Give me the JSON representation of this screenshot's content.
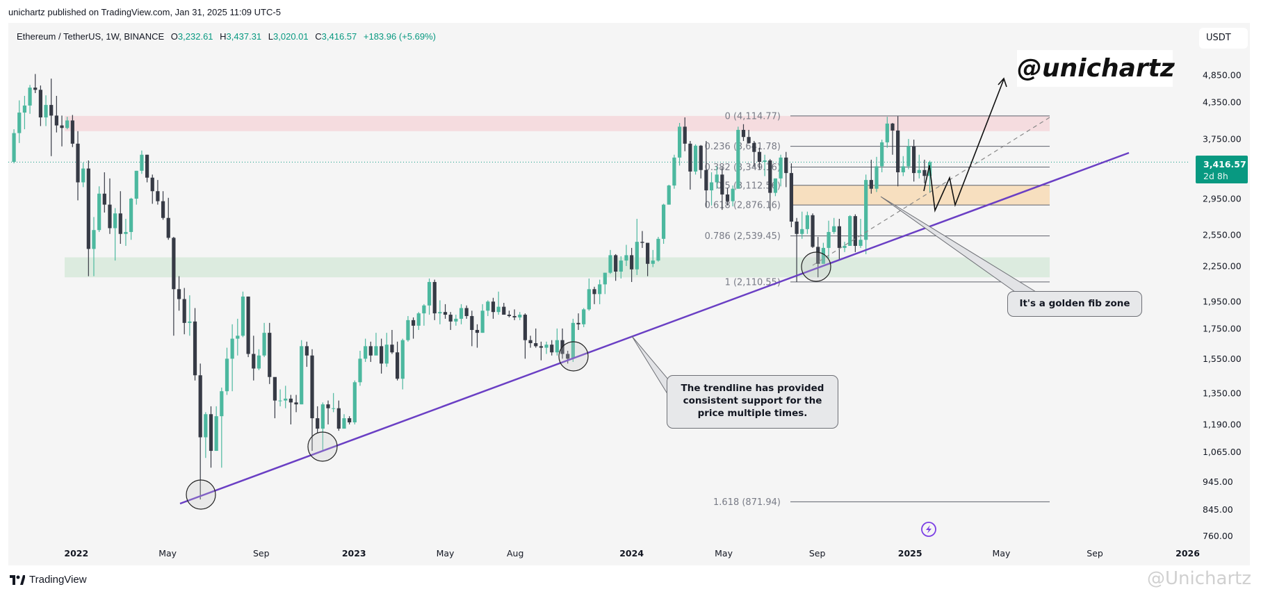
{
  "header": {
    "published": "unichartz published on TradingView.com, Jan 31, 2025 11:09 UTC-5"
  },
  "legend": {
    "symbol": "Ethereum / TetherUS, 1W, BINANCE",
    "o_label": "O",
    "o": "3,232.61",
    "h_label": "H",
    "h": "3,437.31",
    "l_label": "L",
    "l": "3,020.01",
    "c_label": "C",
    "c": "3,416.57",
    "change": "+183.96 (+5.69%)"
  },
  "currency_button": "USDT",
  "brand_tag": "@unichartz",
  "price_label": {
    "price": "3,416.57",
    "countdown": "2d 8h"
  },
  "callouts": {
    "fib_zone": "It's a golden fib zone",
    "trendline_1": "The trendline has provided",
    "trendline_2": "consistent support for the",
    "trendline_3": "price multiple times."
  },
  "footer": {
    "logo": "TradingView",
    "watermark": "@Unichartz"
  },
  "icons": {
    "lightning": "lightning-icon",
    "tv_logo": "tradingview-logo-icon"
  },
  "colors": {
    "up": "#4cb89f",
    "down": "#363a45",
    "trendline": "#6a3fc4",
    "resistance_zone": "#f5dcdf",
    "support_zone": "#dcebdf",
    "golden_zone": "#f7dfbf",
    "last_price": "#089981"
  },
  "chart_data": {
    "type": "candlestick",
    "interval": "1W",
    "y_scale": "log",
    "first_week": "2021-10-11",
    "candles": [
      [
        3420,
        3900,
        3400,
        3840
      ],
      [
        3840,
        4380,
        3690,
        4170
      ],
      [
        4170,
        4460,
        3900,
        4290
      ],
      [
        4290,
        4660,
        4150,
        4610
      ],
      [
        4610,
        4870,
        4510,
        4570
      ],
      [
        4570,
        4650,
        3950,
        4090
      ],
      [
        4090,
        4470,
        3950,
        4300
      ],
      [
        4300,
        4780,
        3500,
        4120
      ],
      [
        4120,
        4460,
        3850,
        3960
      ],
      [
        3960,
        4120,
        3640,
        3920
      ],
      [
        3920,
        4100,
        3900,
        4040
      ],
      [
        4040,
        4130,
        3630,
        3680
      ],
      [
        3680,
        3870,
        2930,
        3150
      ],
      [
        3150,
        3410,
        3090,
        3330
      ],
      [
        3330,
        3440,
        2160,
        2410
      ],
      [
        2410,
        2740,
        2160,
        2600
      ],
      [
        2600,
        3100,
        2580,
        3010
      ],
      [
        3010,
        3280,
        2790,
        2880
      ],
      [
        2880,
        3200,
        2560,
        2620
      ],
      [
        2620,
        2840,
        2300,
        2780
      ],
      [
        2780,
        3040,
        2460,
        2560
      ],
      [
        2560,
        2720,
        2440,
        2580
      ],
      [
        2580,
        2960,
        2500,
        2950
      ],
      [
        2950,
        3300,
        2880,
        3300
      ],
      [
        3300,
        3580,
        3260,
        3520
      ],
      [
        3520,
        3520,
        3150,
        3210
      ],
      [
        3210,
        3250,
        2890,
        3040
      ],
      [
        3040,
        3180,
        2880,
        2920
      ],
      [
        2920,
        3040,
        2710,
        2730
      ],
      [
        2730,
        2960,
        2500,
        2520
      ],
      [
        2520,
        2530,
        1700,
        2050
      ],
      [
        2050,
        2160,
        1880,
        1970
      ],
      [
        1970,
        2060,
        1710,
        1790
      ],
      [
        1790,
        2000,
        1700,
        1800
      ],
      [
        1800,
        1900,
        1420,
        1450
      ],
      [
        1450,
        1520,
        880,
        1130
      ],
      [
        1130,
        1250,
        1040,
        1240
      ],
      [
        1240,
        1280,
        1000,
        1070
      ],
      [
        1070,
        1280,
        1070,
        1230
      ],
      [
        1230,
        1380,
        1000,
        1360
      ],
      [
        1360,
        1620,
        1340,
        1550
      ],
      [
        1550,
        1780,
        1360,
        1680
      ],
      [
        1680,
        1820,
        1570,
        1700
      ],
      [
        1700,
        2030,
        1690,
        1990
      ],
      [
        1990,
        1990,
        1560,
        1580
      ],
      [
        1580,
        1700,
        1420,
        1490
      ],
      [
        1490,
        1610,
        1480,
        1570
      ],
      [
        1570,
        1790,
        1560,
        1720
      ],
      [
        1720,
        1790,
        1400,
        1440
      ],
      [
        1440,
        1430,
        1220,
        1310
      ],
      [
        1310,
        1370,
        1280,
        1310
      ],
      [
        1310,
        1390,
        1270,
        1320
      ],
      [
        1320,
        1340,
        1190,
        1300
      ],
      [
        1300,
        1340,
        1250,
        1290
      ],
      [
        1290,
        1670,
        1290,
        1630
      ],
      [
        1630,
        1660,
        1500,
        1570
      ],
      [
        1570,
        1610,
        1070,
        1220
      ],
      [
        1220,
        1280,
        1150,
        1170
      ],
      [
        1170,
        1300,
        1070,
        1290
      ],
      [
        1290,
        1310,
        1190,
        1270
      ],
      [
        1270,
        1350,
        1250,
        1270
      ],
      [
        1270,
        1310,
        1160,
        1170
      ],
      [
        1170,
        1240,
        1170,
        1220
      ],
      [
        1220,
        1230,
        1190,
        1200
      ],
      [
        1200,
        1420,
        1190,
        1410
      ],
      [
        1410,
        1600,
        1390,
        1550
      ],
      [
        1550,
        1680,
        1530,
        1630
      ],
      [
        1630,
        1660,
        1530,
        1570
      ],
      [
        1570,
        1720,
        1580,
        1630
      ],
      [
        1630,
        1680,
        1460,
        1520
      ],
      [
        1520,
        1720,
        1500,
        1640
      ],
      [
        1640,
        1740,
        1580,
        1590
      ],
      [
        1590,
        1660,
        1420,
        1430
      ],
      [
        1430,
        1680,
        1370,
        1670
      ],
      [
        1670,
        1840,
        1660,
        1810
      ],
      [
        1810,
        1830,
        1680,
        1770
      ],
      [
        1770,
        1870,
        1740,
        1860
      ],
      [
        1860,
        1930,
        1770,
        1920
      ],
      [
        1920,
        2140,
        1850,
        2110
      ],
      [
        2110,
        2130,
        1810,
        1860
      ],
      [
        1860,
        1960,
        1780,
        1870
      ],
      [
        1870,
        1930,
        1820,
        1850
      ],
      [
        1850,
        1870,
        1740,
        1800
      ],
      [
        1800,
        1850,
        1770,
        1820
      ],
      [
        1820,
        1930,
        1780,
        1900
      ],
      [
        1900,
        1920,
        1820,
        1840
      ],
      [
        1840,
        1880,
        1630,
        1740
      ],
      [
        1740,
        1780,
        1620,
        1720
      ],
      [
        1720,
        1930,
        1720,
        1880
      ],
      [
        1880,
        1960,
        1840,
        1950
      ],
      [
        1950,
        1980,
        1820,
        1870
      ],
      [
        1870,
        2030,
        1850,
        1910
      ],
      [
        1910,
        1940,
        1850,
        1850
      ],
      [
        1850,
        1880,
        1830,
        1840
      ],
      [
        1840,
        1890,
        1810,
        1830
      ],
      [
        1830,
        1870,
        1810,
        1850
      ],
      [
        1850,
        1860,
        1550,
        1670
      ],
      [
        1670,
        1700,
        1620,
        1650
      ],
      [
        1650,
        1750,
        1620,
        1630
      ],
      [
        1630,
        1660,
        1540,
        1620
      ],
      [
        1620,
        1660,
        1580,
        1640
      ],
      [
        1640,
        1670,
        1570,
        1590
      ],
      [
        1590,
        1750,
        1570,
        1670
      ],
      [
        1670,
        1750,
        1550,
        1580
      ],
      [
        1580,
        1600,
        1520,
        1550
      ],
      [
        1550,
        1820,
        1530,
        1790
      ],
      [
        1790,
        1860,
        1740,
        1780
      ],
      [
        1780,
        1900,
        1760,
        1890
      ],
      [
        1890,
        2140,
        1880,
        2050
      ],
      [
        2050,
        2070,
        1930,
        2010
      ],
      [
        2010,
        2130,
        1930,
        2090
      ],
      [
        2090,
        2190,
        2010,
        2190
      ],
      [
        2190,
        2400,
        2180,
        2350
      ],
      [
        2350,
        2360,
        2120,
        2200
      ],
      [
        2200,
        2340,
        2140,
        2300
      ],
      [
        2300,
        2450,
        2250,
        2350
      ],
      [
        2350,
        2420,
        2110,
        2220
      ],
      [
        2220,
        2720,
        2170,
        2480
      ],
      [
        2480,
        2590,
        2420,
        2470
      ],
      [
        2470,
        2470,
        2160,
        2270
      ],
      [
        2270,
        2400,
        2240,
        2300
      ],
      [
        2300,
        2530,
        2290,
        2510
      ],
      [
        2510,
        2890,
        2460,
        2880
      ],
      [
        2880,
        3120,
        2880,
        3110
      ],
      [
        3110,
        3520,
        3070,
        3480
      ],
      [
        3480,
        4000,
        3370,
        3940
      ],
      [
        3940,
        4090,
        3570,
        3680
      ],
      [
        3680,
        3720,
        3060,
        3290
      ],
      [
        3290,
        3670,
        3250,
        3650
      ],
      [
        3650,
        3660,
        3200,
        3310
      ],
      [
        3310,
        3720,
        2850,
        3050
      ],
      [
        3050,
        3280,
        2870,
        3150
      ],
      [
        3150,
        3360,
        3070,
        3250
      ],
      [
        3250,
        3350,
        2820,
        3000
      ],
      [
        3000,
        3080,
        2870,
        2920
      ],
      [
        2920,
        3110,
        2860,
        3070
      ],
      [
        3070,
        3940,
        3070,
        3890
      ],
      [
        3890,
        3980,
        3720,
        3780
      ],
      [
        3780,
        3890,
        3680,
        3690
      ],
      [
        3690,
        3720,
        3350,
        3560
      ],
      [
        3560,
        3620,
        3320,
        3420
      ],
      [
        3420,
        3520,
        3230,
        3440
      ],
      [
        3440,
        3460,
        2810,
        3020
      ],
      [
        3020,
        3200,
        2980,
        3200
      ],
      [
        3200,
        3520,
        3100,
        3480
      ],
      [
        3480,
        3560,
        3090,
        3270
      ],
      [
        3270,
        3400,
        2630,
        2690
      ],
      [
        2690,
        2730,
        2110,
        2560
      ],
      [
        2560,
        2800,
        2510,
        2610
      ],
      [
        2610,
        2800,
        2560,
        2760
      ],
      [
        2760,
        2780,
        2420,
        2430
      ],
      [
        2430,
        2530,
        2150,
        2270
      ],
      [
        2270,
        2470,
        2270,
        2420
      ],
      [
        2420,
        2700,
        2320,
        2580
      ],
      [
        2580,
        2730,
        2560,
        2640
      ],
      [
        2640,
        2720,
        2310,
        2420
      ],
      [
        2420,
        2480,
        2380,
        2440
      ],
      [
        2440,
        2760,
        2440,
        2750
      ],
      [
        2750,
        2770,
        2380,
        2440
      ],
      [
        2440,
        2720,
        2420,
        2500
      ],
      [
        2500,
        3250,
        2360,
        3180
      ],
      [
        3180,
        3450,
        3010,
        3070
      ],
      [
        3070,
        3490,
        3030,
        3360
      ],
      [
        3360,
        3740,
        3280,
        3700
      ],
      [
        3700,
        4100,
        3620,
        3990
      ],
      [
        3990,
        4000,
        3520,
        3880
      ],
      [
        3880,
        4110,
        3100,
        3280
      ],
      [
        3280,
        3500,
        3230,
        3360
      ],
      [
        3360,
        3750,
        3320,
        3640
      ],
      [
        3640,
        3740,
        3160,
        3270
      ],
      [
        3270,
        3520,
        3200,
        3310
      ],
      [
        3310,
        3450,
        3140,
        3232.61
      ],
      [
        3232.61,
        3437.31,
        3020.01,
        3416.57
      ]
    ],
    "last_price": 3416.57,
    "y_ticks": [
      "4,850.00",
      "4,350.00",
      "3,750.00",
      "2,950.00",
      "2,550.00",
      "2,250.00",
      "1,950.00",
      "1,750.00",
      "1,550.00",
      "1,350.00",
      "1,190.00",
      "1,065.00",
      "945.00",
      "845.00",
      "760.00"
    ],
    "x_ticks": [
      {
        "label": "2022",
        "date": "2022-01-01",
        "year": true
      },
      {
        "label": "May",
        "date": "2022-05-01"
      },
      {
        "label": "Sep",
        "date": "2022-09-01"
      },
      {
        "label": "2023",
        "date": "2023-01-01",
        "year": true
      },
      {
        "label": "May",
        "date": "2023-05-01"
      },
      {
        "label": "Aug",
        "date": "2023-08-01"
      },
      {
        "label": "2024",
        "date": "2024-01-01",
        "year": true
      },
      {
        "label": "May",
        "date": "2024-05-01"
      },
      {
        "label": "Sep",
        "date": "2024-09-01"
      },
      {
        "label": "2025",
        "date": "2025-01-01",
        "year": true
      },
      {
        "label": "May",
        "date": "2025-05-01"
      },
      {
        "label": "Sep",
        "date": "2025-09-01"
      },
      {
        "label": "2026",
        "date": "2026-01-01",
        "year": true
      }
    ],
    "fib_levels": [
      {
        "ratio": "0",
        "price": 4114.77,
        "label": "0 (4,114.77)"
      },
      {
        "ratio": "0.236",
        "price": 3641.78,
        "label": "0.236 (3,641.78)"
      },
      {
        "ratio": "0.382",
        "price": 3349.16,
        "label": "0.382 (3,349.16)"
      },
      {
        "ratio": "0.5",
        "price": 3112.56,
        "label": "0.5 (3,112.56)"
      },
      {
        "ratio": "0.618",
        "price": 2876.16,
        "label": "0.618 (2,876.16)"
      },
      {
        "ratio": "0.786",
        "price": 2539.45,
        "label": "0.786 (2,539.45)"
      },
      {
        "ratio": "1",
        "price": 2110.55,
        "label": "1 (2,110.55)"
      },
      {
        "ratio": "1.618",
        "price": 871.94,
        "label": "1.618 (871.94)"
      }
    ],
    "zones": {
      "resistance": [
        3870,
        4114.77
      ],
      "support": [
        2150,
        2330
      ],
      "golden": [
        2876.16,
        3112.56
      ]
    }
  }
}
